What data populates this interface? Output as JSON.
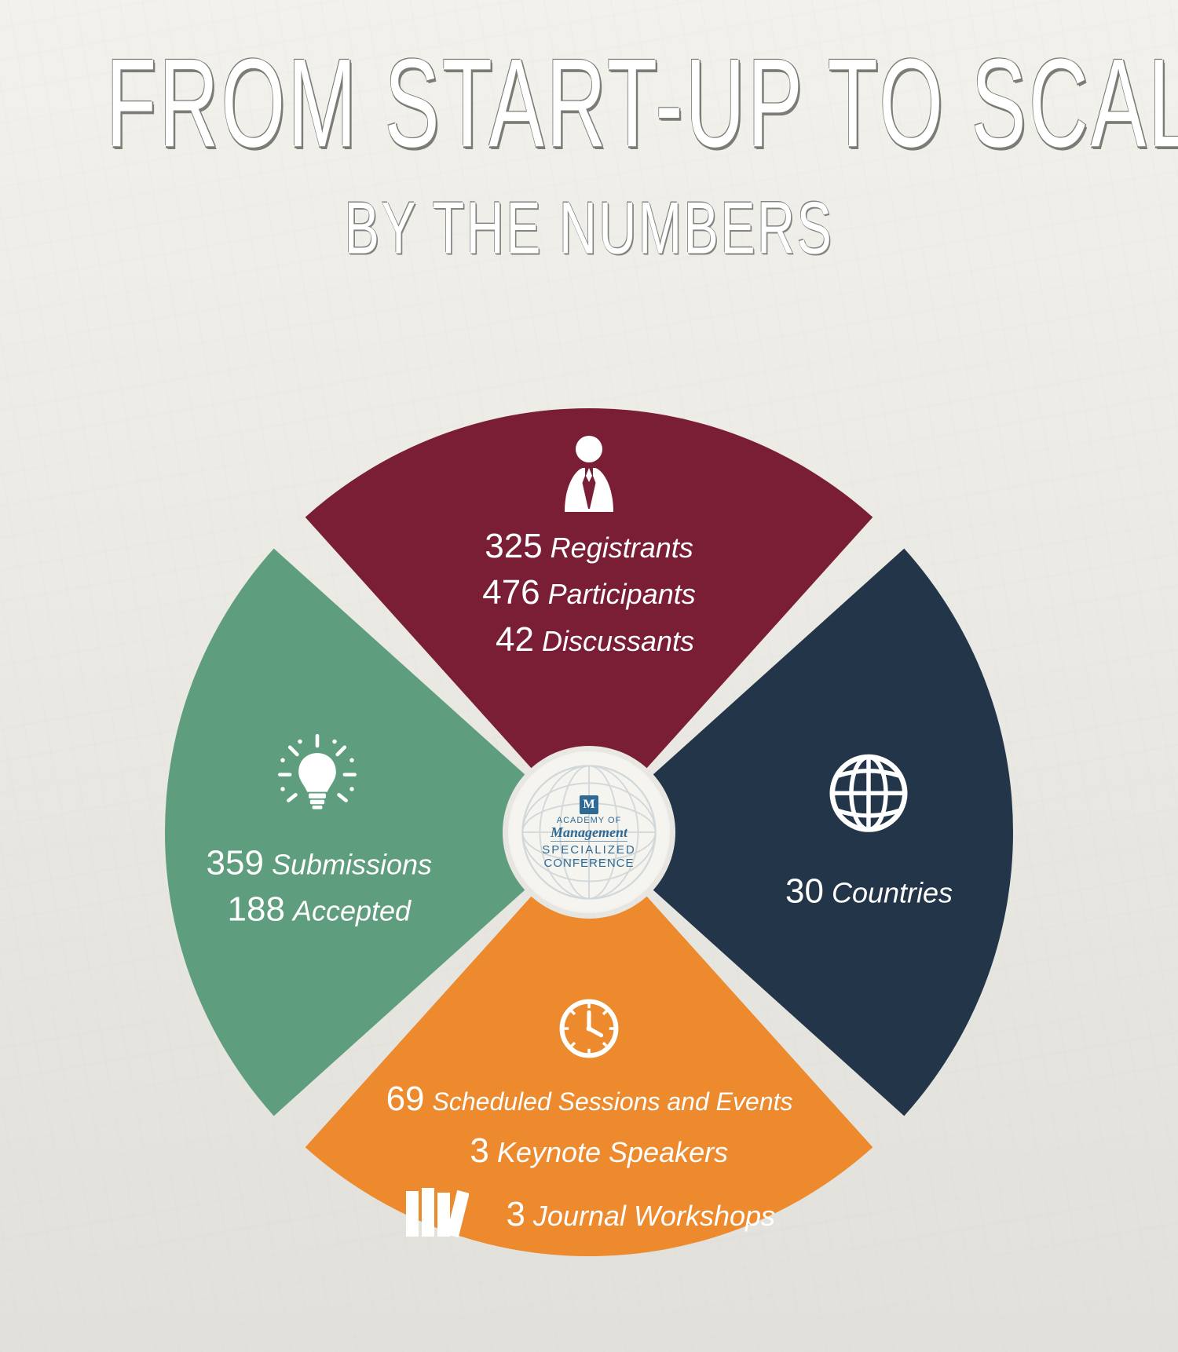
{
  "title": "FROM START-UP TO SCALE-UP",
  "subtitle": "BY THE NUMBERS",
  "hub": {
    "org_line1": "ACADEMY OF",
    "org_line2": "Management",
    "org_line3": "SPECIALIZED",
    "org_line4": "CONFERENCE",
    "logo_mark": "M"
  },
  "chart": {
    "type": "radial-segments",
    "outer_radius": 540,
    "inner_radius": 110,
    "gap_deg": 6,
    "center_bg": "#f5f4ef",
    "segments": [
      {
        "key": "people",
        "color": "#7a1e36",
        "angle_center_deg": -90,
        "icon": "person-icon",
        "rows": [
          {
            "num": "325",
            "label": "Registrants"
          },
          {
            "num": "476",
            "label": "Participants"
          },
          {
            "num": "42",
            "label": "Discussants"
          }
        ]
      },
      {
        "key": "countries",
        "color": "#233548",
        "angle_center_deg": 0,
        "icon": "globe-icon",
        "rows": [
          {
            "num": "30",
            "label": "Countries"
          }
        ]
      },
      {
        "key": "schedule",
        "color": "#ee8a2e",
        "angle_center_deg": 90,
        "icon": "clock-icon",
        "rows": [
          {
            "num": "69",
            "label": "Scheduled Sessions and Events"
          },
          {
            "num": "3",
            "label": "Keynote Speakers"
          }
        ],
        "extra_icon": "books-icon",
        "extra_row": {
          "num": "3",
          "label": "Journal Workshops"
        }
      },
      {
        "key": "submissions",
        "color": "#5e9d7d",
        "angle_center_deg": 180,
        "icon": "bulb-icon",
        "rows": [
          {
            "num": "359",
            "label": "Submissions"
          },
          {
            "num": "188",
            "label": "Accepted"
          }
        ]
      }
    ]
  }
}
